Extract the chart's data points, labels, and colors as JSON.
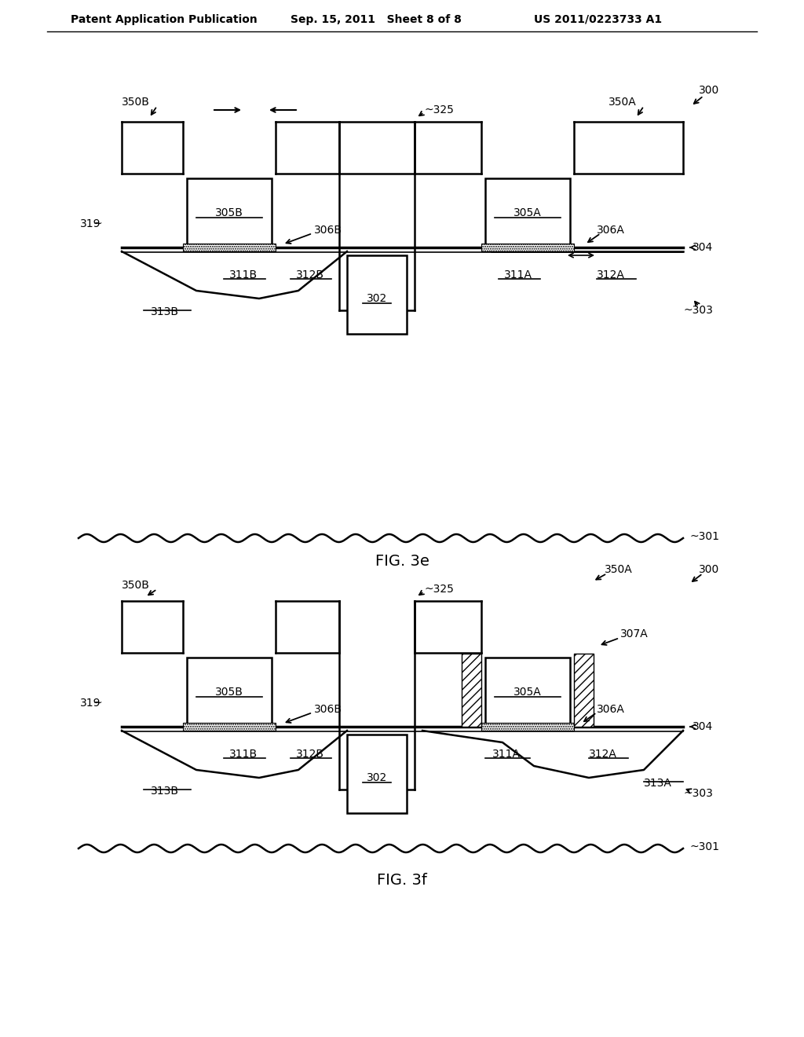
{
  "title_line1": "Patent Application Publication",
  "title_line2": "Sep. 15, 2011  Sheet 8 of 8",
  "title_line3": "US 2011/0223733 A1",
  "fig_label_e": "FIG. 3e",
  "fig_label_f": "FIG. 3f",
  "background_color": "#ffffff",
  "line_color": "#000000",
  "hatch_color": "#000000"
}
